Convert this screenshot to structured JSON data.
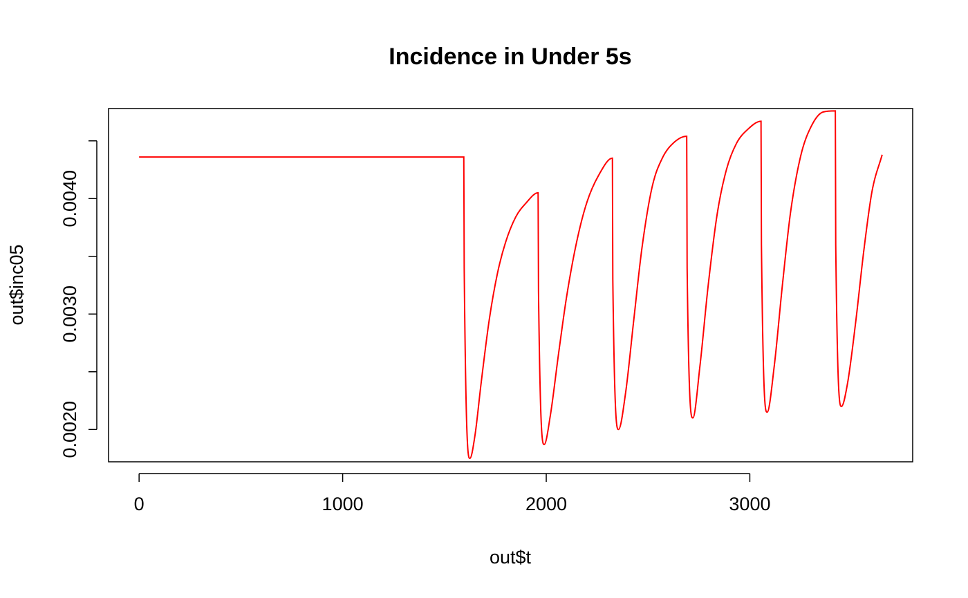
{
  "chart_data": {
    "type": "line",
    "title": "Incidence in Under 5s",
    "xlabel": "out$t",
    "ylabel": "out$inc05",
    "xlim": [
      -150,
      3800
    ],
    "ylim": [
      0.00172,
      0.00478
    ],
    "x_axis": {
      "ticks": [
        0,
        1000,
        2000,
        3000
      ],
      "tick_labels": [
        "0",
        "1000",
        "2000",
        "3000"
      ]
    },
    "y_axis": {
      "ticks": [
        0.002,
        0.0025,
        0.003,
        0.0035,
        0.004,
        0.0045
      ],
      "tick_labels": [
        "0.0020",
        "",
        "0.0030",
        "",
        "0.0040",
        ""
      ]
    },
    "grid": false,
    "legend": "none",
    "series": [
      {
        "color": "#ff0000",
        "x": [
          0,
          1595,
          1597,
          1625,
          1650,
          1680,
          1720,
          1760,
          1800,
          1850,
          1900,
          1960,
          1962,
          1990,
          2020,
          2060,
          2100,
          2150,
          2200,
          2260,
          2325,
          2327,
          2355,
          2390,
          2430,
          2470,
          2520,
          2570,
          2630,
          2690,
          2692,
          2720,
          2755,
          2795,
          2840,
          2885,
          2935,
          2990,
          3055,
          3057,
          3085,
          3120,
          3160,
          3200,
          3250,
          3300,
          3360,
          3420,
          3422,
          3450,
          3480,
          3520,
          3560,
          3600,
          3650
        ],
        "y": [
          0.00436,
          0.00436,
          0.0034,
          0.00175,
          0.00195,
          0.0024,
          0.00295,
          0.00335,
          0.00362,
          0.00384,
          0.00396,
          0.00405,
          0.0032,
          0.00187,
          0.00212,
          0.00265,
          0.00315,
          0.00363,
          0.00397,
          0.00421,
          0.00435,
          0.0033,
          0.002,
          0.00232,
          0.00295,
          0.00357,
          0.0041,
          0.00435,
          0.00449,
          0.00454,
          0.0034,
          0.0021,
          0.00255,
          0.00324,
          0.00387,
          0.00425,
          0.00448,
          0.0046,
          0.00467,
          0.0036,
          0.00215,
          0.00255,
          0.00325,
          0.00388,
          0.00437,
          0.00462,
          0.00475,
          0.00476,
          0.0036,
          0.0022,
          0.0024,
          0.00293,
          0.00355,
          0.00406,
          0.00438
        ]
      }
    ]
  }
}
